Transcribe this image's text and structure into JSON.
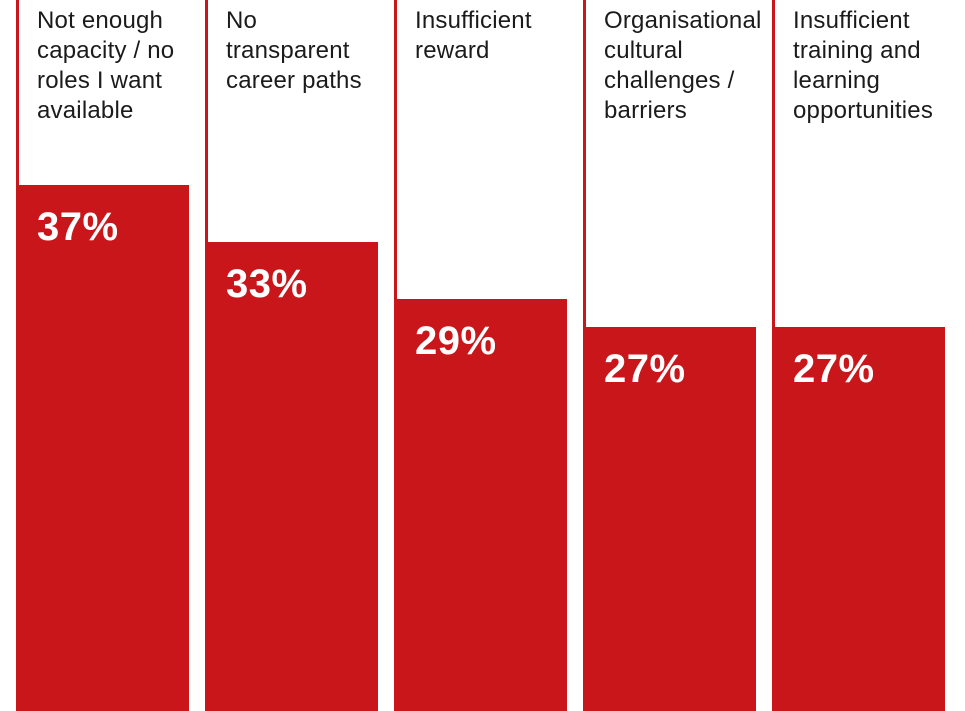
{
  "chart_data": {
    "type": "bar",
    "categories": [
      "Not enough\ncapacity / no\nroles I want\navailable",
      "No\ntransparent\ncareer paths",
      "Insufficient\nreward",
      "Organisational\ncultural\nchallenges /\nbarriers",
      "Insufficient\ntraining and\nlearning\nopportunities"
    ],
    "values": [
      37,
      33,
      29,
      27,
      27
    ],
    "value_labels": [
      "37%",
      "33%",
      "29%",
      "27%",
      "27%"
    ],
    "unit": "%",
    "title": "",
    "xlabel": "",
    "ylabel": "",
    "ylim": [
      0,
      50
    ],
    "grid": false,
    "legend": "none",
    "bar_color": "#c8161a",
    "value_label_color": "#ffffff",
    "label_color": "#1b1b1b"
  }
}
